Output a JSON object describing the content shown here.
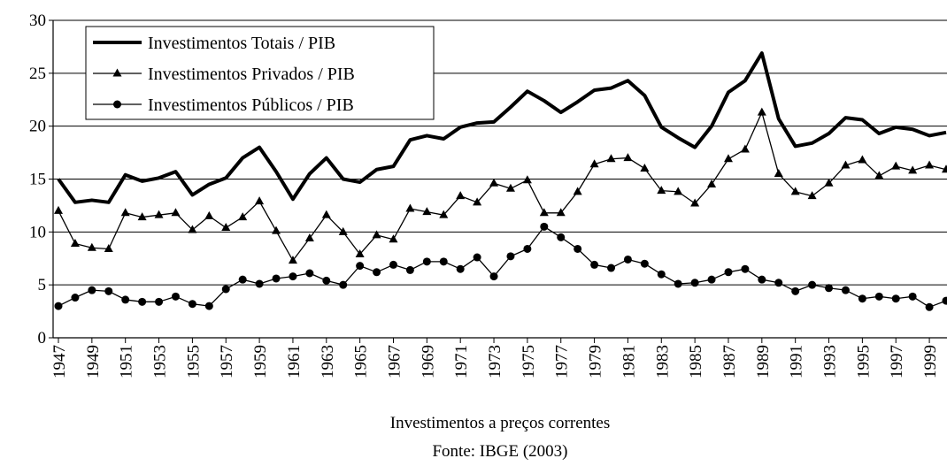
{
  "chart_data": {
    "type": "line",
    "x_label": "Investimentos a preços correntes",
    "source": "Fonte: IBGE (2003)",
    "x": [
      1947,
      1948,
      1949,
      1950,
      1951,
      1952,
      1953,
      1954,
      1955,
      1956,
      1957,
      1958,
      1959,
      1960,
      1961,
      1962,
      1963,
      1964,
      1965,
      1966,
      1967,
      1968,
      1969,
      1970,
      1971,
      1972,
      1973,
      1974,
      1975,
      1976,
      1977,
      1978,
      1979,
      1980,
      1981,
      1982,
      1983,
      1984,
      1985,
      1986,
      1987,
      1988,
      1989,
      1990,
      1991,
      1992,
      1993,
      1994,
      1995,
      1996,
      1997,
      1998,
      1999,
      2000
    ],
    "xlim": [
      1947,
      2000
    ],
    "xticks": [
      1947,
      1949,
      1951,
      1953,
      1955,
      1957,
      1959,
      1961,
      1963,
      1965,
      1967,
      1969,
      1971,
      1973,
      1975,
      1977,
      1979,
      1981,
      1983,
      1985,
      1987,
      1989,
      1991,
      1993,
      1995,
      1997,
      1999
    ],
    "ylim": [
      0,
      30
    ],
    "yticks": [
      0,
      5,
      10,
      15,
      20,
      25,
      30
    ],
    "grid": true,
    "legend": "upper left",
    "series": [
      {
        "name": "Investimentos Totais / PIB",
        "color": "#000000",
        "marker": "none",
        "line_width": 4,
        "values": [
          15.0,
          12.8,
          13.0,
          12.8,
          15.4,
          14.8,
          15.1,
          15.7,
          13.5,
          14.5,
          15.1,
          17.0,
          18.0,
          15.7,
          13.1,
          15.5,
          17.0,
          15.0,
          14.7,
          15.9,
          16.2,
          18.7,
          19.1,
          18.8,
          19.9,
          20.3,
          20.4,
          21.8,
          23.3,
          22.4,
          21.3,
          22.3,
          23.4,
          23.6,
          24.3,
          22.9,
          19.9,
          18.9,
          18.0,
          20.0,
          23.2,
          24.3,
          26.9,
          20.7,
          18.1,
          18.4,
          19.3,
          20.8,
          20.6,
          19.3,
          19.9,
          19.7,
          19.1,
          19.4
        ]
      },
      {
        "name": "Investimentos Privados / PIB",
        "color": "#000000",
        "marker": "triangle",
        "line_width": 1.3,
        "values": [
          12.0,
          8.9,
          8.5,
          8.4,
          11.8,
          11.4,
          11.6,
          11.8,
          10.2,
          11.5,
          10.4,
          11.4,
          12.9,
          10.1,
          7.3,
          9.4,
          11.6,
          10.0,
          7.9,
          9.7,
          9.3,
          12.2,
          11.9,
          11.6,
          13.4,
          12.8,
          14.6,
          14.1,
          14.9,
          11.8,
          11.8,
          13.8,
          16.4,
          16.9,
          17.0,
          16.0,
          13.9,
          13.8,
          12.7,
          14.5,
          16.9,
          17.8,
          21.3,
          15.5,
          13.8,
          13.4,
          14.6,
          16.3,
          16.8,
          15.3,
          16.2,
          15.8,
          16.3,
          15.9
        ]
      },
      {
        "name": "Investimentos Públicos / PIB",
        "color": "#000000",
        "marker": "circle",
        "line_width": 1.3,
        "values": [
          3.0,
          3.8,
          4.5,
          4.4,
          3.6,
          3.4,
          3.4,
          3.9,
          3.2,
          3.0,
          4.6,
          5.5,
          5.1,
          5.6,
          5.8,
          6.1,
          5.4,
          5.0,
          6.8,
          6.2,
          6.9,
          6.4,
          7.2,
          7.2,
          6.5,
          7.6,
          5.8,
          7.7,
          8.4,
          10.5,
          9.5,
          8.4,
          6.9,
          6.6,
          7.4,
          7.0,
          6.0,
          5.1,
          5.2,
          5.5,
          6.2,
          6.5,
          5.5,
          5.2,
          4.4,
          5.0,
          4.7,
          4.5,
          3.7,
          3.9,
          3.7,
          3.9,
          2.9,
          3.5
        ]
      }
    ]
  }
}
